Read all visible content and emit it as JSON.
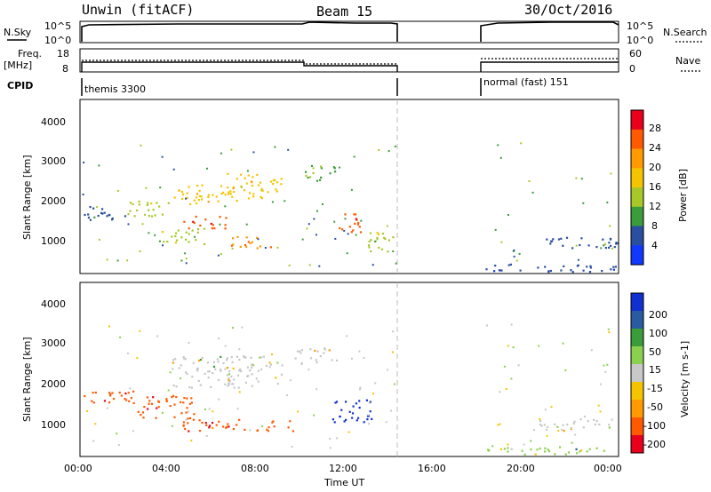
{
  "header": {
    "title": "Unwin (fitACF)",
    "beam": "Beam 15",
    "date": "30/Oct/2016"
  },
  "noise_panel": {
    "left_label": "N.Sky",
    "right_label": "N.Search",
    "left_ticks": [
      "10^5",
      "10^0"
    ],
    "right_ticks": [
      "10^5",
      "10^0"
    ]
  },
  "freq_panel": {
    "left_label_1": "Freq.",
    "left_label_2": "[MHz]",
    "right_label": "Nave",
    "left_ticks": [
      "18",
      "8"
    ],
    "right_ticks": [
      "60",
      "0"
    ]
  },
  "cpid_panel": {
    "label": "CPID",
    "program_1": "themis 3300",
    "program_2": "normal (fast) 151"
  },
  "x_axis": {
    "label": "Time UT",
    "ticks": [
      "00:00",
      "04:00",
      "08:00",
      "12:00",
      "16:00",
      "20:00",
      "00:00"
    ]
  },
  "power_panel": {
    "ylabel": "Slant Range [km]",
    "yticks": [
      "4000",
      "3000",
      "2000",
      "1000"
    ],
    "colorbar_label": "Power [dB]",
    "colorbar_ticks": [
      "28",
      "24",
      "20",
      "16",
      "12",
      "8",
      "4"
    ],
    "colorbar_colors": [
      "#e8001c",
      "#ff5a00",
      "#ff9a00",
      "#f5c400",
      "#a8c828",
      "#3a9c3a",
      "#2a4fa0",
      "#1038ff"
    ]
  },
  "velocity_panel": {
    "ylabel": "Slant Range [km]",
    "yticks": [
      "4000",
      "3000",
      "2000",
      "1000"
    ],
    "colorbar_label": "Velocity [m s-1]",
    "colorbar_ticks": [
      "200",
      "100",
      "50",
      "15",
      "-15",
      "-50",
      "-100",
      "-200"
    ],
    "colorbar_colors": [
      "#1030d0",
      "#2a5aa0",
      "#3a9c3a",
      "#8cd050",
      "#c8c8c8",
      "#f5c400",
      "#ff9a00",
      "#ff5a00",
      "#e8001c"
    ]
  },
  "chart_data": {
    "type": "heatmap",
    "x_range_hours": [
      0,
      24
    ],
    "y_range_km": [
      180,
      4500
    ],
    "data_gap_hours": [
      14.2,
      18.0
    ],
    "regions_power": [
      {
        "t0": 0.0,
        "t1": 2.0,
        "r0": 1500,
        "r1": 1850,
        "value_db": 6
      },
      {
        "t0": 2.0,
        "t1": 4.0,
        "r0": 1600,
        "r1": 2000,
        "value_db": 14
      },
      {
        "t0": 4.0,
        "t1": 6.5,
        "r0": 1900,
        "r1": 2400,
        "value_db": 18
      },
      {
        "t0": 6.5,
        "t1": 9.0,
        "r0": 2000,
        "r1": 2700,
        "value_db": 16
      },
      {
        "t0": 4.5,
        "t1": 6.5,
        "r0": 1300,
        "r1": 1600,
        "value_db": 26
      },
      {
        "t0": 3.5,
        "t1": 5.5,
        "r0": 900,
        "r1": 1300,
        "value_db": 14
      },
      {
        "t0": 6.5,
        "t1": 8.5,
        "r0": 800,
        "r1": 1100,
        "value_db": 22
      },
      {
        "t0": 11.5,
        "t1": 12.5,
        "r0": 1100,
        "r1": 1700,
        "value_db": 26
      },
      {
        "t0": 12.5,
        "t1": 14.0,
        "r0": 700,
        "r1": 1200,
        "value_db": 12
      },
      {
        "t0": 10.0,
        "t1": 11.5,
        "r0": 2500,
        "r1": 2900,
        "value_db": 10
      },
      {
        "t0": 20.5,
        "t1": 24.0,
        "r0": 800,
        "r1": 1100,
        "value_db": 6
      },
      {
        "t0": 18.0,
        "t1": 24.0,
        "r0": 200,
        "r1": 400,
        "value_db": 4
      }
    ],
    "regions_velocity": [
      {
        "t0": 0.0,
        "t1": 2.5,
        "r0": 1500,
        "r1": 1850,
        "value_ms": -200
      },
      {
        "t0": 2.5,
        "t1": 5.0,
        "r0": 1100,
        "r1": 1700,
        "value_ms": -200
      },
      {
        "t0": 4.5,
        "t1": 9.5,
        "r0": 800,
        "r1": 1100,
        "value_ms": -150
      },
      {
        "t0": 4.0,
        "t1": 9.0,
        "r0": 1900,
        "r1": 2700,
        "value_ms": 0
      },
      {
        "t0": 11.2,
        "t1": 13.0,
        "r0": 1000,
        "r1": 1600,
        "value_ms": 220
      },
      {
        "t0": 9.5,
        "t1": 11.5,
        "r0": 2500,
        "r1": 2900,
        "value_ms": 0
      },
      {
        "t0": 20.5,
        "t1": 24.0,
        "r0": 800,
        "r1": 1100,
        "value_ms": -10
      },
      {
        "t0": 18.0,
        "t1": 24.0,
        "r0": 200,
        "r1": 400,
        "value_ms": 30
      }
    ]
  }
}
